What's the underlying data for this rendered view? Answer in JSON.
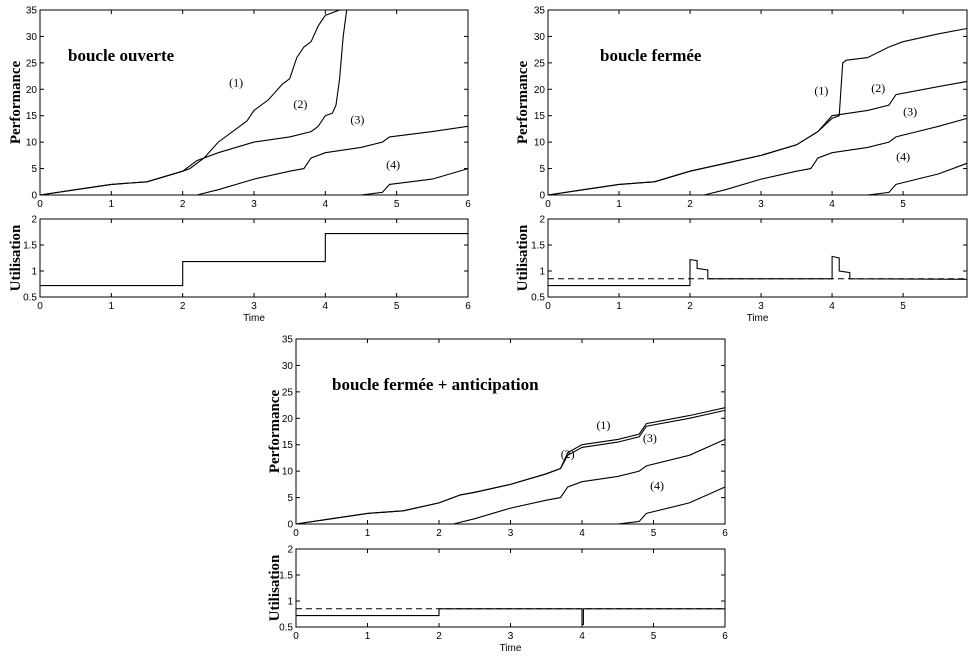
{
  "chart_data": [
    {
      "type": "line",
      "panel": "top-left",
      "title": "boucle ouverte",
      "performance": {
        "ylabel": "Performance",
        "xlim": [
          0,
          6
        ],
        "ylim": [
          0,
          35
        ],
        "xticks": [
          0,
          1,
          2,
          3,
          4,
          5,
          6
        ],
        "yticks": [
          0,
          5,
          10,
          15,
          20,
          25,
          30,
          35
        ],
        "series": [
          {
            "name": "(1)",
            "x": [
              0,
              0.5,
              1.0,
              1.5,
              2.0,
              2.1,
              2.3,
              2.5,
              2.7,
              2.9,
              3.0,
              3.2,
              3.4,
              3.5,
              3.6,
              3.7,
              3.8,
              3.9,
              4.0,
              4.2
            ],
            "y": [
              0,
              1,
              2,
              2.5,
              4.5,
              5,
              7,
              10,
              12,
              14,
              16,
              18,
              21,
              22,
              26,
              28,
              29,
              32,
              34,
              35
            ]
          },
          {
            "name": "(2)",
            "x": [
              0,
              0.5,
              1.0,
              1.5,
              2.0,
              2.2,
              2.5,
              3.0,
              3.5,
              3.8,
              3.9,
              4.0,
              4.1,
              4.15,
              4.2,
              4.25,
              4.3
            ],
            "y": [
              0,
              1,
              2,
              2.5,
              4.5,
              6.5,
              8,
              10,
              11,
              12,
              13,
              15,
              15.5,
              17,
              22,
              30,
              35
            ]
          },
          {
            "name": "(3)",
            "x": [
              2.2,
              2.5,
              3.0,
              3.5,
              3.7,
              3.8,
              4.0,
              4.5,
              4.8,
              4.9,
              5.5,
              6.0
            ],
            "y": [
              0,
              1,
              3,
              4.5,
              5,
              7,
              8,
              9,
              10,
              11,
              12,
              13
            ]
          },
          {
            "name": "(4)",
            "x": [
              3.9,
              4.5,
              4.8,
              4.9,
              5.5,
              6.0
            ],
            "y": [
              0,
              0,
              0.5,
              2,
              3,
              5
            ]
          }
        ],
        "labels": [
          {
            "text": "(1)",
            "x": 2.75,
            "y": 20.5
          },
          {
            "text": "(2)",
            "x": 3.65,
            "y": 16.5
          },
          {
            "text": "(3)",
            "x": 4.45,
            "y": 13.5
          },
          {
            "text": "(4)",
            "x": 4.95,
            "y": 5
          }
        ]
      },
      "utilisation": {
        "ylabel": "Utilisation",
        "xlabel": "Time",
        "xlim": [
          0,
          6
        ],
        "ylim": [
          0.5,
          2
        ],
        "xticks": [
          0,
          1,
          2,
          3,
          4,
          5,
          6
        ],
        "yticks": [
          0.5,
          1,
          1.5,
          2
        ],
        "ytick_labels": [
          "0.5",
          "1",
          "1.5",
          "2"
        ],
        "series": [
          {
            "name": "",
            "x": [
              0,
              2.0,
              2.0,
              4.0,
              4.0,
              6.0
            ],
            "y": [
              0.72,
              0.72,
              1.18,
              1.18,
              1.72,
              1.72
            ]
          }
        ]
      }
    },
    {
      "type": "line",
      "panel": "top-right",
      "title": "boucle fermée",
      "performance": {
        "ylabel": "Performance",
        "xlim": [
          0,
          5.9
        ],
        "ylim": [
          0,
          35
        ],
        "xticks": [
          0,
          1,
          2,
          3,
          4,
          5
        ],
        "yticks": [
          0,
          5,
          10,
          15,
          20,
          25,
          30,
          35
        ],
        "series": [
          {
            "name": "(1)",
            "x": [
              0,
              0.5,
              1.0,
              1.5,
              2.0,
              2.5,
              3.0,
              3.5,
              3.8,
              4.0,
              4.1,
              4.15,
              4.2,
              4.5,
              4.8,
              5.0,
              5.5,
              5.9
            ],
            "y": [
              0,
              1,
              2,
              2.5,
              4.5,
              6,
              7.5,
              9.5,
              12,
              14.5,
              15,
              25,
              25.5,
              26,
              28,
              29,
              30.5,
              31.5
            ]
          },
          {
            "name": "(2)",
            "x": [
              0,
              0.5,
              1.0,
              1.5,
              2.0,
              2.5,
              3.0,
              3.5,
              3.8,
              4.0,
              4.5,
              4.8,
              4.9,
              5.5,
              5.9
            ],
            "y": [
              0,
              1,
              2,
              2.5,
              4.5,
              6,
              7.5,
              9.5,
              12,
              15,
              16,
              17,
              19,
              20.5,
              21.5
            ]
          },
          {
            "name": "(3)",
            "x": [
              2.2,
              2.5,
              3.0,
              3.5,
              3.7,
              3.8,
              4.0,
              4.5,
              4.8,
              4.9,
              5.5,
              5.9
            ],
            "y": [
              0,
              1,
              3,
              4.5,
              5,
              7,
              8,
              9,
              10,
              11,
              13,
              14.5
            ]
          },
          {
            "name": "(4)",
            "x": [
              3.9,
              4.5,
              4.8,
              4.9,
              5.5,
              5.9
            ],
            "y": [
              0,
              0,
              0.5,
              2,
              4,
              6
            ]
          }
        ],
        "labels": [
          {
            "text": "(1)",
            "x": 3.85,
            "y": 19
          },
          {
            "text": "(2)",
            "x": 4.65,
            "y": 19.5
          },
          {
            "text": "(3)",
            "x": 5.1,
            "y": 15
          },
          {
            "text": "(4)",
            "x": 5.0,
            "y": 6.5
          }
        ]
      },
      "utilisation": {
        "ylabel": "Utilisation",
        "xlabel": "Time",
        "xlim": [
          0,
          5.9
        ],
        "ylim": [
          0.5,
          2
        ],
        "xticks": [
          0,
          1,
          2,
          3,
          4,
          5
        ],
        "yticks": [
          0.5,
          1,
          1.5,
          2
        ],
        "ytick_labels": [
          "0.5",
          "1",
          "1.5",
          "2"
        ],
        "series": [
          {
            "name": "",
            "x": [
              0,
              2.0,
              2.0,
              2.1,
              2.1,
              2.25,
              2.25,
              4.0,
              4.0,
              4.1,
              4.1,
              4.25,
              4.25,
              5.9
            ],
            "y": [
              0.72,
              0.72,
              1.22,
              1.2,
              1.05,
              1.02,
              0.85,
              0.85,
              1.28,
              1.25,
              1.0,
              0.97,
              0.85,
              0.84
            ]
          }
        ],
        "reference_line": {
          "y": 0.85,
          "style": "dashed"
        }
      }
    },
    {
      "type": "line",
      "panel": "bottom-center",
      "title": "boucle fermée + anticipation",
      "performance": {
        "ylabel": "Performance",
        "xlim": [
          0,
          6
        ],
        "ylim": [
          0,
          35
        ],
        "xticks": [
          0,
          1,
          2,
          3,
          4,
          5,
          6
        ],
        "yticks": [
          0,
          5,
          10,
          15,
          20,
          25,
          30,
          35
        ],
        "series": [
          {
            "name": "(1)",
            "x": [
              0,
              0.5,
              1.0,
              1.5,
              2.0,
              2.3,
              2.5,
              3.0,
              3.5,
              3.7,
              3.8,
              4.0,
              4.5,
              4.8,
              4.9,
              5.5,
              6.0
            ],
            "y": [
              0,
              1,
              2,
              2.5,
              4,
              5.5,
              6,
              7.5,
              9.5,
              10.5,
              13.5,
              15,
              16,
              17,
              19,
              20.5,
              22
            ]
          },
          {
            "name": "(2)",
            "x": [
              0,
              0.5,
              1.0,
              1.5,
              2.0,
              2.3,
              2.5,
              3.0,
              3.5,
              3.7,
              3.8,
              4.0,
              4.5,
              4.8,
              4.9,
              5.5,
              6.0
            ],
            "y": [
              0,
              1,
              2,
              2.5,
              4,
              5.5,
              6,
              7.5,
              9.5,
              10.5,
              13,
              14.5,
              15.5,
              16.5,
              18.5,
              20,
              21.5
            ]
          },
          {
            "name": "(3)",
            "x": [
              2.2,
              2.5,
              3.0,
              3.5,
              3.7,
              3.8,
              4.0,
              4.5,
              4.8,
              4.9,
              5.5,
              6.0
            ],
            "y": [
              0,
              1,
              3,
              4.5,
              5,
              7,
              8,
              9,
              10,
              11,
              13,
              16
            ]
          },
          {
            "name": "(4)",
            "x": [
              3.9,
              4.5,
              4.8,
              4.9,
              5.5,
              6.0
            ],
            "y": [
              0,
              0,
              0.5,
              2,
              4,
              7
            ]
          }
        ],
        "labels": [
          {
            "text": "(1)",
            "x": 4.3,
            "y": 18
          },
          {
            "text": "(2)",
            "x": 3.8,
            "y": 12.5
          },
          {
            "text": "(3)",
            "x": 4.95,
            "y": 15.5
          },
          {
            "text": "(4)",
            "x": 5.05,
            "y": 6.5
          }
        ]
      },
      "utilisation": {
        "ylabel": "Utilisation",
        "xlabel": "Time",
        "xlim": [
          0,
          6
        ],
        "ylim": [
          0.5,
          2
        ],
        "xticks": [
          0,
          1,
          2,
          3,
          4,
          5,
          6
        ],
        "yticks": [
          0.5,
          1,
          1.5,
          2
        ],
        "ytick_labels": [
          "0.5",
          "1",
          "1.5",
          "2"
        ],
        "series": [
          {
            "name": "",
            "x": [
              0,
              2.0,
              2.0,
              4.0,
              4.0,
              4.02,
              4.02,
              6.0
            ],
            "y": [
              0.72,
              0.72,
              0.85,
              0.85,
              0.55,
              0.55,
              0.85,
              0.85
            ]
          }
        ],
        "reference_line": {
          "y": 0.85,
          "style": "dashed"
        }
      }
    }
  ]
}
